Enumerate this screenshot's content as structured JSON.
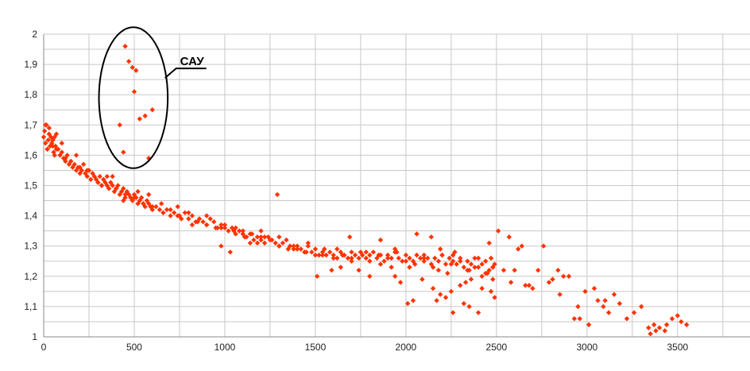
{
  "chart_data": {
    "type": "scatter",
    "title": "",
    "xlabel": "",
    "ylabel": "",
    "xlim": [
      0,
      3900
    ],
    "ylim": [
      1,
      2
    ],
    "x_ticks": [
      0,
      500,
      1000,
      1500,
      2000,
      2500,
      3000,
      3500
    ],
    "x_tick_labels": [
      "0",
      "500",
      "1000",
      "1500",
      "2000",
      "2500",
      "3000",
      "3500"
    ],
    "y_ticks": [
      1,
      1.1,
      1.2,
      1.3,
      1.4,
      1.5,
      1.6,
      1.7,
      1.8,
      1.9,
      2
    ],
    "y_tick_labels": [
      "1",
      "1,1",
      "1,2",
      "1,3",
      "1,4",
      "1,5",
      "1,6",
      "1,7",
      "1,8",
      "1,9",
      "2"
    ],
    "x_minor_step": 250,
    "y_minor_step": 0.05,
    "grid": true,
    "marker": "diamond",
    "marker_color": "#ff3300",
    "series": [
      {
        "name": "",
        "x": [
          0,
          5,
          10,
          15,
          20,
          25,
          30,
          35,
          40,
          45,
          50,
          55,
          60,
          65,
          70,
          80,
          90,
          100,
          110,
          120,
          130,
          140,
          150,
          160,
          170,
          180,
          190,
          200,
          210,
          220,
          230,
          240,
          250,
          260,
          270,
          280,
          290,
          300,
          310,
          320,
          330,
          340,
          350,
          360,
          370,
          380,
          390,
          400,
          410,
          420,
          430,
          440,
          450,
          460,
          470,
          480,
          490,
          500,
          510,
          520,
          530,
          540,
          550,
          560,
          570,
          580,
          590,
          600,
          620,
          640,
          660,
          680,
          700,
          720,
          740,
          760,
          780,
          800,
          820,
          840,
          860,
          880,
          900,
          920,
          940,
          960,
          980,
          1000,
          1020,
          1040,
          1060,
          1080,
          1100,
          1120,
          1140,
          1160,
          1180,
          1200,
          1220,
          1240,
          1260,
          1280,
          1300,
          1320,
          1340,
          1360,
          1380,
          1400,
          1420,
          1440,
          1460,
          1480,
          1500,
          1520,
          1540,
          1560,
          1580,
          1600,
          1620,
          1640,
          1660,
          1680,
          1700,
          1720,
          1740,
          1760,
          1780,
          1800,
          1820,
          1840,
          1860,
          1880,
          1900,
          1920,
          1940,
          1960,
          1980,
          2000,
          2020,
          2040,
          2060,
          2080,
          2100,
          2120,
          2140,
          2160,
          2180,
          2200,
          2220,
          2240,
          2260,
          2280,
          2300,
          2320,
          2340,
          2360,
          2380,
          2400,
          2420,
          2440,
          2460,
          2480,
          2490,
          10,
          30,
          50,
          70,
          100,
          150,
          200,
          250,
          300,
          350,
          400,
          450,
          500,
          550,
          600,
          650,
          700,
          750,
          800,
          850,
          900,
          950,
          1000,
          1050,
          1100,
          1150,
          1200,
          1250,
          1300,
          1350,
          1400,
          1450,
          1500,
          1550,
          1600,
          1650,
          1700,
          1750,
          1800,
          1850,
          1900,
          1950,
          2000,
          2050,
          2100,
          2150,
          2200,
          2250,
          2300,
          2350,
          2400,
          2450,
          2480,
          20,
          60,
          120,
          180,
          240,
          320,
          380,
          440,
          520,
          580,
          660,
          740,
          820,
          900,
          980,
          1060,
          1140,
          1220,
          1300,
          1380,
          1460,
          1540,
          1620,
          1700,
          1780,
          1860,
          1940,
          2020,
          2100,
          2180,
          2260,
          2340,
          2420,
          2470,
          450,
          470,
          490,
          510,
          530,
          560,
          580,
          420,
          440,
          500,
          600,
          1290,
          1030,
          980,
          1110,
          1180,
          1200,
          1640,
          1690,
          1860,
          1740,
          1940,
          2060,
          2090,
          2140,
          2190,
          2230,
          2270,
          2330,
          2380,
          2440,
          2480,
          2250,
          2190,
          2150,
          2220,
          2300,
          2360,
          2420,
          2040,
          1970,
          1920,
          2010,
          2170,
          2260,
          2350,
          2470,
          2490,
          2400,
          2320,
          1510,
          1590,
          1800,
          2460,
          2510,
          2540,
          2570,
          2600,
          2620,
          2640,
          2660,
          2700,
          2730,
          2760,
          2790,
          2810,
          2840,
          2870,
          2900,
          2930,
          2960,
          2990,
          3010,
          3040,
          3060,
          3090,
          3120,
          3150,
          3180,
          3220,
          3260,
          3300,
          3340,
          3370,
          3400,
          3430,
          3470,
          3520,
          3550,
          3380,
          3350,
          3440,
          3500,
          2850,
          2950,
          3100,
          2680,
          2580
        ],
        "y": [
          1.66,
          1.68,
          1.64,
          1.7,
          1.62,
          1.65,
          1.67,
          1.63,
          1.66,
          1.64,
          1.65,
          1.61,
          1.66,
          1.63,
          1.62,
          1.62,
          1.6,
          1.61,
          1.59,
          1.58,
          1.6,
          1.57,
          1.58,
          1.56,
          1.57,
          1.55,
          1.56,
          1.54,
          1.55,
          1.57,
          1.54,
          1.53,
          1.55,
          1.52,
          1.54,
          1.53,
          1.52,
          1.51,
          1.53,
          1.5,
          1.52,
          1.51,
          1.5,
          1.49,
          1.51,
          1.5,
          1.48,
          1.49,
          1.5,
          1.47,
          1.48,
          1.49,
          1.46,
          1.48,
          1.47,
          1.46,
          1.45,
          1.47,
          1.46,
          1.44,
          1.45,
          1.46,
          1.44,
          1.43,
          1.45,
          1.44,
          1.43,
          1.42,
          1.43,
          1.42,
          1.41,
          1.42,
          1.4,
          1.41,
          1.4,
          1.39,
          1.41,
          1.39,
          1.4,
          1.38,
          1.39,
          1.38,
          1.37,
          1.39,
          1.38,
          1.36,
          1.37,
          1.36,
          1.35,
          1.36,
          1.34,
          1.35,
          1.34,
          1.33,
          1.34,
          1.32,
          1.33,
          1.32,
          1.31,
          1.33,
          1.32,
          1.31,
          1.3,
          1.31,
          1.32,
          1.3,
          1.29,
          1.3,
          1.29,
          1.28,
          1.3,
          1.28,
          1.29,
          1.27,
          1.28,
          1.27,
          1.28,
          1.27,
          1.26,
          1.28,
          1.27,
          1.26,
          1.28,
          1.27,
          1.26,
          1.27,
          1.26,
          1.27,
          1.28,
          1.26,
          1.27,
          1.25,
          1.27,
          1.26,
          1.28,
          1.26,
          1.25,
          1.27,
          1.26,
          1.25,
          1.27,
          1.26,
          1.25,
          1.26,
          1.24,
          1.26,
          1.25,
          1.27,
          1.24,
          1.26,
          1.25,
          1.24,
          1.26,
          1.23,
          1.25,
          1.24,
          1.26,
          1.23,
          1.24,
          1.25,
          1.22,
          1.23,
          1.24,
          1.7,
          1.69,
          1.63,
          1.67,
          1.64,
          1.58,
          1.56,
          1.55,
          1.51,
          1.53,
          1.49,
          1.47,
          1.46,
          1.44,
          1.43,
          1.44,
          1.42,
          1.4,
          1.41,
          1.38,
          1.37,
          1.36,
          1.37,
          1.35,
          1.35,
          1.34,
          1.33,
          1.32,
          1.3,
          1.29,
          1.29,
          1.28,
          1.27,
          1.29,
          1.26,
          1.27,
          1.26,
          1.28,
          1.25,
          1.27,
          1.26,
          1.28,
          1.25,
          1.24,
          1.26,
          1.23,
          1.27,
          1.24,
          1.25,
          1.22,
          1.26,
          1.21,
          1.23,
          1.62,
          1.6,
          1.59,
          1.6,
          1.55,
          1.5,
          1.53,
          1.45,
          1.48,
          1.47,
          1.41,
          1.43,
          1.37,
          1.4,
          1.36,
          1.36,
          1.31,
          1.33,
          1.33,
          1.3,
          1.31,
          1.27,
          1.29,
          1.25,
          1.28,
          1.24,
          1.29,
          1.23,
          1.27,
          1.22,
          1.27,
          1.22,
          1.2,
          1.26,
          1.96,
          1.91,
          1.89,
          1.88,
          1.72,
          1.73,
          1.59,
          1.7,
          1.61,
          1.81,
          1.75,
          1.47,
          1.28,
          1.3,
          1.33,
          1.31,
          1.35,
          1.23,
          1.33,
          1.32,
          1.22,
          1.2,
          1.34,
          1.19,
          1.33,
          1.29,
          1.21,
          1.28,
          1.18,
          1.23,
          1.21,
          1.19,
          1.15,
          1.14,
          1.16,
          1.13,
          1.17,
          1.19,
          1.16,
          1.12,
          1.18,
          1.23,
          1.11,
          1.12,
          1.08,
          1.1,
          1.15,
          1.13,
          1.08,
          1.11,
          1.2,
          1.22,
          1.2,
          1.31,
          1.35,
          1.22,
          1.33,
          1.22,
          1.29,
          1.3,
          1.17,
          1.16,
          1.22,
          1.3,
          1.18,
          1.19,
          1.22,
          1.2,
          1.2,
          1.06,
          1.06,
          1.15,
          1.04,
          1.16,
          1.12,
          1.1,
          1.08,
          1.14,
          1.11,
          1.06,
          1.08,
          1.1,
          1.03,
          1.04,
          1.03,
          1.02,
          1.06,
          1.05,
          1.04,
          1.02,
          1.01,
          1.04,
          1.07,
          1.14,
          1.1,
          1.12,
          1.17,
          1.18
        ]
      }
    ],
    "annotations": [
      {
        "type": "ellipse-callout",
        "label": "САУ",
        "center_x": 495,
        "center_y": 1.79,
        "radius_x": 190,
        "radius_y": 0.233
      }
    ]
  }
}
